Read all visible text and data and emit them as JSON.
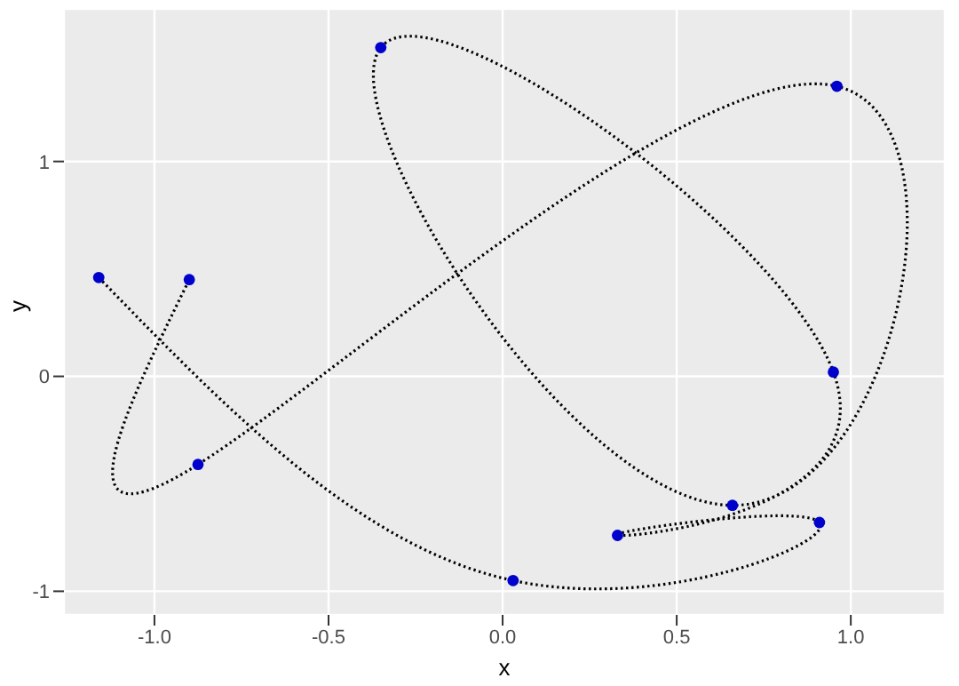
{
  "chart_data": {
    "type": "line",
    "xlabel": "x",
    "ylabel": "y",
    "xlim": [
      -1.26,
      1.27
    ],
    "ylim": [
      -1.11,
      1.71
    ],
    "xticks": [
      {
        "value": -1,
        "label": "-1.0"
      },
      {
        "value": -0.5,
        "label": "-0.5"
      },
      {
        "value": 0,
        "label": "0.0"
      },
      {
        "value": 0.5,
        "label": "0.5"
      },
      {
        "value": 1,
        "label": "1.0"
      }
    ],
    "yticks": [
      -1,
      0,
      1
    ],
    "grid": true,
    "series": [
      {
        "color": "#000000",
        "line_style": "dotted",
        "marker": "none",
        "x": [
          -1.16,
          0.03,
          0.91,
          0.33,
          0.95,
          -0.35,
          0.66,
          0.96,
          -0.875,
          -0.9
        ],
        "values": [
          0.46,
          -0.95,
          -0.68,
          -0.74,
          0.02,
          1.53,
          -0.6,
          1.35,
          -0.41,
          0.45
        ]
      },
      {
        "type": "scatter",
        "color": "#0000cc",
        "marker": "circle",
        "x": [
          -1.16,
          0.03,
          0.91,
          0.33,
          0.95,
          -0.35,
          0.66,
          0.96,
          -0.875,
          -0.9
        ],
        "values": [
          0.46,
          -0.95,
          -0.68,
          -0.74,
          0.02,
          1.53,
          -0.6,
          1.35,
          -0.41,
          0.45
        ]
      }
    ]
  }
}
